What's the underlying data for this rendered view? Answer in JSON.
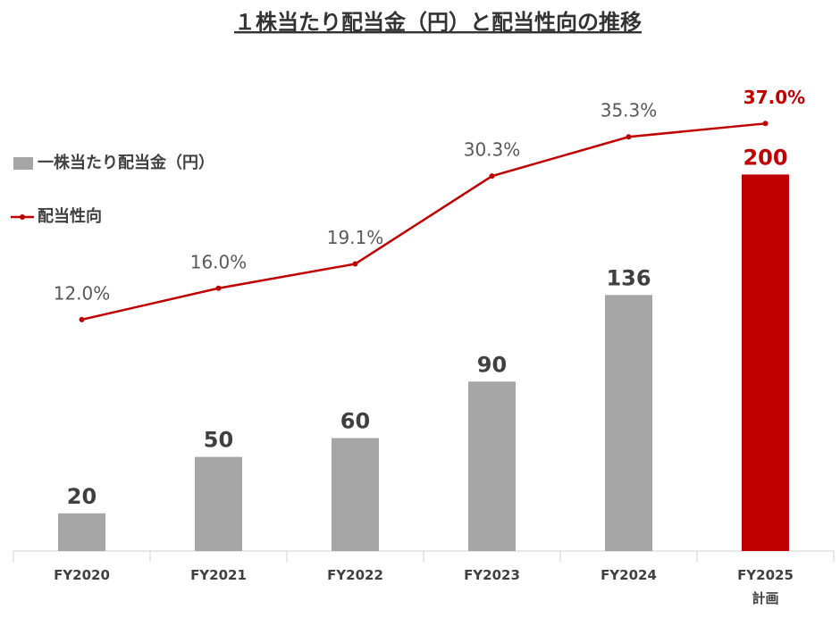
{
  "chart_data": {
    "type": "bar_line",
    "title": "１株当たり配当金（円）と配当性向の推移",
    "categories": [
      "FY2020",
      "FY2021",
      "FY2022",
      "FY2023",
      "FY2024",
      "FY2025\n計画"
    ],
    "series": [
      {
        "name": "一株当たり配当金（円）",
        "type": "bar",
        "color": "#a6a6a6",
        "colors": [
          "#a6a6a6",
          "#a6a6a6",
          "#a6a6a6",
          "#a6a6a6",
          "#a6a6a6",
          "#c00000"
        ],
        "label_colors": [
          "#404040",
          "#404040",
          "#404040",
          "#404040",
          "#404040",
          "#c00000"
        ],
        "values": [
          20,
          50,
          60,
          90,
          136,
          200
        ]
      },
      {
        "name": "配当性向",
        "type": "line",
        "axis": "y2",
        "color": "#c00000",
        "label_colors": [
          "#595959",
          "#595959",
          "#595959",
          "#595959",
          "#595959",
          "#c00000"
        ],
        "values": [
          12.0,
          16.0,
          19.1,
          30.3,
          35.3,
          37.0
        ],
        "value_labels": [
          "12.0%",
          "16.0%",
          "19.1%",
          "30.3%",
          "35.3%",
          "37.0%"
        ]
      }
    ],
    "ylim": [
      0,
      250
    ],
    "y2lim": [
      -17.5,
      42.5
    ],
    "legend": "left"
  }
}
